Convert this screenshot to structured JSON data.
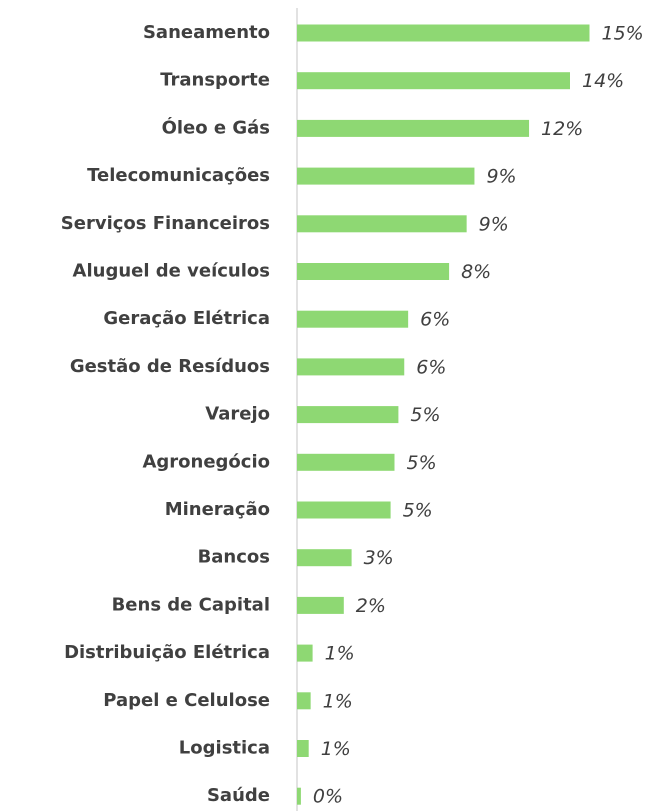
{
  "chart_data": {
    "type": "bar",
    "orientation": "horizontal",
    "categories": [
      "Saneamento",
      "Transporte",
      "Óleo e Gás",
      "Telecomunicações",
      "Serviços Financeiros",
      "Aluguel de veículos",
      "Geração Elétrica",
      "Gestão de Resíduos",
      "Varejo",
      "Agronegócio",
      "Mineração",
      "Bancos",
      "Bens de Capital",
      "Distribuição Elétrica",
      "Papel e Celulose",
      "Logistica",
      "Saúde"
    ],
    "values": [
      15.0,
      14.0,
      11.9,
      9.1,
      8.7,
      7.8,
      5.7,
      5.5,
      5.2,
      5.0,
      4.8,
      2.8,
      2.4,
      0.8,
      0.7,
      0.6,
      0.2
    ],
    "value_labels": [
      "15%",
      "14%",
      "12%",
      "9%",
      "9%",
      "8%",
      "6%",
      "6%",
      "5%",
      "5%",
      "5%",
      "3%",
      "2%",
      "1%",
      "1%",
      "1%",
      "0%"
    ],
    "color": "#8ed873",
    "xlim": [
      0,
      16
    ]
  }
}
